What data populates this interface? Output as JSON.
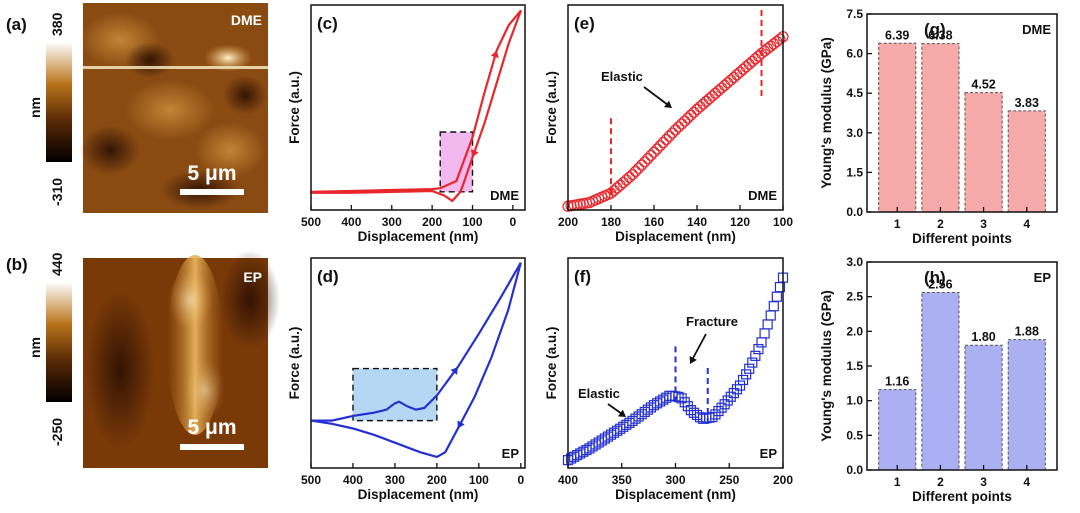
{
  "panels": {
    "a": {
      "label": "(a)",
      "tag": "DME",
      "scale": "5 μm",
      "cb_max": "380",
      "cb_min": "-310",
      "cb_unit": "nm"
    },
    "b": {
      "label": "(b)",
      "tag": "EP",
      "scale": "5 μm",
      "cb_max": "440",
      "cb_min": "-250",
      "cb_unit": "nm"
    }
  },
  "colors": {
    "dme": "#e8262b",
    "ep": "#2430d0",
    "dme_bar": "#f7aaaa",
    "ep_bar": "#aab0f2",
    "dme_box": "#f2b9ef",
    "ep_box": "#b4d8f4"
  },
  "chart_data": [
    {
      "id": "c",
      "type": "line",
      "label": "(c)",
      "tag": "DME",
      "xlabel": "Displacement (nm)",
      "ylabel": "Force (a.u.)",
      "xlim": [
        500,
        -30
      ],
      "ylim": [
        -0.1,
        1.03
      ],
      "xticks": [
        500,
        400,
        300,
        200,
        100,
        0
      ],
      "approach": [
        [
          500,
          0.0
        ],
        [
          400,
          0.005
        ],
        [
          300,
          0.01
        ],
        [
          200,
          0.015
        ],
        [
          180,
          0.02
        ],
        [
          160,
          0.04
        ],
        [
          140,
          0.06
        ],
        [
          130,
          0.12
        ],
        [
          100,
          0.3
        ],
        [
          70,
          0.55
        ],
        [
          40,
          0.78
        ],
        [
          10,
          0.92
        ],
        [
          -20,
          1.0
        ]
      ],
      "retract": [
        [
          -20,
          1.0
        ],
        [
          10,
          0.82
        ],
        [
          40,
          0.6
        ],
        [
          70,
          0.38
        ],
        [
          100,
          0.19
        ],
        [
          120,
          0.06
        ],
        [
          130,
          0.0
        ],
        [
          150,
          -0.05
        ],
        [
          170,
          -0.02
        ],
        [
          200,
          0.005
        ],
        [
          300,
          0.0
        ],
        [
          400,
          -0.005
        ],
        [
          500,
          -0.005
        ]
      ],
      "box": {
        "x": [
          180,
          100
        ],
        "y": [
          0.0,
          0.33
        ]
      }
    },
    {
      "id": "d",
      "type": "line",
      "label": "(d)",
      "tag": "EP",
      "xlabel": "Displacement (nm)",
      "ylabel": "Force (a.u.)",
      "xlim": [
        500,
        -10
      ],
      "ylim": [
        -0.3,
        1.03
      ],
      "xticks": [
        500,
        400,
        300,
        200,
        100,
        0
      ],
      "approach": [
        [
          500,
          0.0
        ],
        [
          450,
          0.0
        ],
        [
          400,
          0.03
        ],
        [
          350,
          0.05
        ],
        [
          320,
          0.07
        ],
        [
          300,
          0.11
        ],
        [
          290,
          0.12
        ],
        [
          270,
          0.09
        ],
        [
          250,
          0.07
        ],
        [
          230,
          0.08
        ],
        [
          200,
          0.16
        ],
        [
          150,
          0.34
        ],
        [
          100,
          0.55
        ],
        [
          50,
          0.77
        ],
        [
          0,
          1.0
        ]
      ],
      "retract": [
        [
          0,
          1.0
        ],
        [
          30,
          0.7
        ],
        [
          70,
          0.4
        ],
        [
          110,
          0.15
        ],
        [
          150,
          -0.05
        ],
        [
          180,
          -0.2
        ],
        [
          200,
          -0.23
        ],
        [
          240,
          -0.2
        ],
        [
          300,
          -0.14
        ],
        [
          350,
          -0.09
        ],
        [
          400,
          -0.05
        ],
        [
          450,
          -0.02
        ],
        [
          500,
          0.0
        ]
      ],
      "box": {
        "x": [
          400,
          200
        ],
        "y": [
          0.0,
          0.33
        ]
      }
    },
    {
      "id": "e",
      "type": "scatter",
      "label": "(e)",
      "tag": "DME",
      "xlabel": "Displacement (nm)",
      "ylabel": "Force (a.u.)",
      "xlim": [
        200,
        100
      ],
      "ylim": [
        -0.02,
        1.08
      ],
      "xticks": [
        200,
        180,
        160,
        140,
        120,
        100
      ],
      "region_lines": [
        180,
        110
      ],
      "annotation": "Elastic",
      "curve": [
        [
          200,
          0.0
        ],
        [
          190,
          0.02
        ],
        [
          180,
          0.07
        ],
        [
          170,
          0.17
        ],
        [
          160,
          0.29
        ],
        [
          150,
          0.41
        ],
        [
          140,
          0.52
        ],
        [
          130,
          0.62
        ],
        [
          120,
          0.72
        ],
        [
          110,
          0.82
        ],
        [
          100,
          0.91
        ]
      ]
    },
    {
      "id": "f",
      "type": "scatter",
      "label": "(f)",
      "tag": "EP",
      "xlabel": "Displacement (nm)",
      "ylabel": "Force (a.u.)",
      "xlim": [
        400,
        200
      ],
      "ylim": [
        -0.02,
        1.05
      ],
      "xticks": [
        400,
        350,
        300,
        250,
        200
      ],
      "region_lines": [
        300,
        270
      ],
      "annotations": [
        "Elastic",
        "Fracture"
      ],
      "curve": [
        [
          400,
          0.02
        ],
        [
          380,
          0.08
        ],
        [
          360,
          0.15
        ],
        [
          340,
          0.22
        ],
        [
          320,
          0.3
        ],
        [
          305,
          0.35
        ],
        [
          295,
          0.34
        ],
        [
          285,
          0.27
        ],
        [
          275,
          0.23
        ],
        [
          265,
          0.24
        ],
        [
          255,
          0.3
        ],
        [
          240,
          0.4
        ],
        [
          230,
          0.5
        ],
        [
          220,
          0.62
        ],
        [
          210,
          0.78
        ],
        [
          200,
          0.95
        ]
      ]
    },
    {
      "id": "g",
      "type": "bar",
      "label": "(g)",
      "tag": "DME",
      "categories": [
        "1",
        "2",
        "3",
        "4"
      ],
      "values": [
        6.39,
        6.38,
        4.52,
        3.83
      ],
      "value_labels": [
        "6.39",
        "6.38",
        "4.52",
        "3.83"
      ],
      "xlabel": "Different points",
      "ylabel": "Young's modulus (GPa)",
      "ylim": [
        0,
        7.5
      ],
      "yticks": [
        "0.0",
        "1.5",
        "3.0",
        "4.5",
        "6.0",
        "7.5"
      ]
    },
    {
      "id": "h",
      "type": "bar",
      "label": "(h)",
      "tag": "EP",
      "categories": [
        "1",
        "2",
        "3",
        "4"
      ],
      "values": [
        1.16,
        2.56,
        1.8,
        1.88
      ],
      "value_labels": [
        "1.16",
        "2.56",
        "1.80",
        "1.88"
      ],
      "xlabel": "Different points",
      "ylabel": "Young's modulus (GPa)",
      "ylim": [
        0,
        3.0
      ],
      "yticks": [
        "0.0",
        "0.5",
        "1.0",
        "1.5",
        "2.0",
        "2.5",
        "3.0"
      ]
    }
  ]
}
